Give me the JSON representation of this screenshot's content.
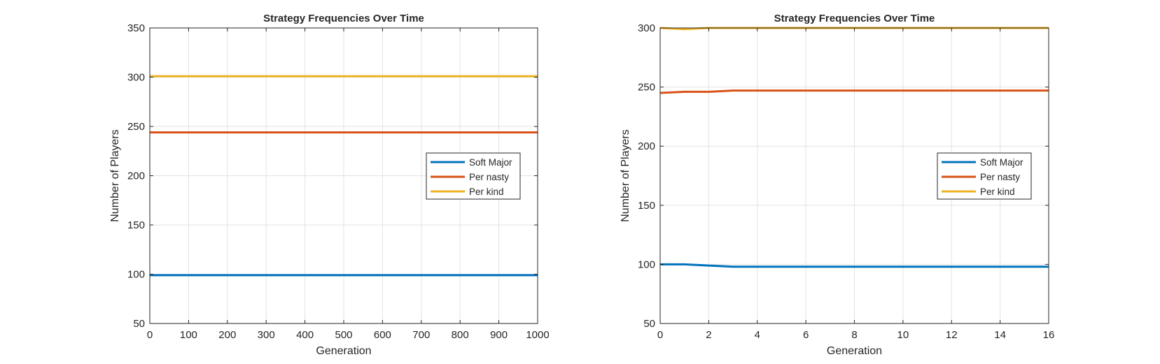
{
  "chart_data": [
    {
      "type": "line",
      "title": "Strategy Frequencies Over Time",
      "xlabel": "Generation",
      "ylabel": "Number of Players",
      "xlim": [
        0,
        1000
      ],
      "ylim": [
        50,
        350
      ],
      "xticks": [
        0,
        100,
        200,
        300,
        400,
        500,
        600,
        700,
        800,
        900,
        1000
      ],
      "yticks": [
        50,
        100,
        150,
        200,
        250,
        300,
        350
      ],
      "grid": true,
      "legend_position": "right",
      "series": [
        {
          "name": "Soft Major",
          "color": "#0072BD",
          "x": [
            0,
            1000
          ],
          "y": [
            99,
            99
          ]
        },
        {
          "name": "Per nasty",
          "color": "#D95319",
          "x": [
            0,
            1000
          ],
          "y": [
            244,
            244
          ]
        },
        {
          "name": "Per kind",
          "color": "#EDB120",
          "x": [
            0,
            1000
          ],
          "y": [
            301,
            301
          ]
        }
      ]
    },
    {
      "type": "line",
      "title": "Strategy Frequencies Over Time",
      "xlabel": "Generation",
      "ylabel": "Number of Players",
      "xlim": [
        0,
        16
      ],
      "ylim": [
        50,
        300
      ],
      "xticks": [
        0,
        2,
        4,
        6,
        8,
        10,
        12,
        14,
        16
      ],
      "yticks": [
        50,
        100,
        150,
        200,
        250,
        300
      ],
      "grid": true,
      "legend_position": "right",
      "series": [
        {
          "name": "Soft Major",
          "color": "#0072BD",
          "x": [
            0,
            1,
            2,
            3,
            4,
            5,
            6,
            7,
            8,
            9,
            10,
            11,
            12,
            13,
            14,
            15,
            16
          ],
          "y": [
            100,
            100,
            99,
            98,
            98,
            98,
            98,
            98,
            98,
            98,
            98,
            98,
            98,
            98,
            98,
            98,
            98
          ]
        },
        {
          "name": "Per nasty",
          "color": "#D95319",
          "x": [
            0,
            1,
            2,
            3,
            4,
            5,
            6,
            7,
            8,
            9,
            10,
            11,
            12,
            13,
            14,
            15,
            16
          ],
          "y": [
            245,
            246,
            246,
            247,
            247,
            247,
            247,
            247,
            247,
            247,
            247,
            247,
            247,
            247,
            247,
            247,
            247
          ]
        },
        {
          "name": "Per kind",
          "color": "#EDB120",
          "x": [
            0,
            1,
            2,
            3,
            4,
            5,
            6,
            7,
            8,
            9,
            10,
            11,
            12,
            13,
            14,
            15,
            16
          ],
          "y": [
            300,
            299,
            300,
            300,
            300,
            300,
            300,
            300,
            300,
            300,
            300,
            300,
            300,
            300,
            300,
            300,
            300
          ]
        }
      ]
    }
  ]
}
